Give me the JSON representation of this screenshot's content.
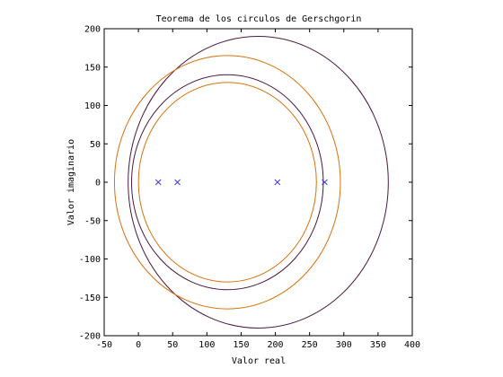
{
  "chart_data": {
    "type": "scatter",
    "title": "Teorema de los circulos de Gerschgorin",
    "xlabel": "Valor real",
    "ylabel": "Valor imaginario",
    "xlim": [
      -50,
      400
    ],
    "ylim": [
      -200,
      200
    ],
    "xticks": [
      -50,
      0,
      50,
      100,
      150,
      200,
      250,
      300,
      350,
      400
    ],
    "yticks": [
      -200,
      -150,
      -100,
      -50,
      0,
      50,
      100,
      150,
      200
    ],
    "grid": false,
    "legend": "none",
    "circles": [
      {
        "center_x": 175,
        "center_y": 0,
        "radius": 190,
        "color": "#4a1a40"
      },
      {
        "center_x": 130,
        "center_y": 0,
        "radius": 165,
        "color": "#d9720e"
      },
      {
        "center_x": 130,
        "center_y": 0,
        "radius": 140,
        "color": "#4a1a40"
      },
      {
        "center_x": 130,
        "center_y": 0,
        "radius": 130,
        "color": "#d9720e"
      }
    ],
    "points": {
      "marker": "x",
      "color": "#3a3ad6",
      "x": [
        29,
        57,
        203,
        272
      ],
      "y": [
        0,
        0,
        0,
        0
      ]
    }
  }
}
